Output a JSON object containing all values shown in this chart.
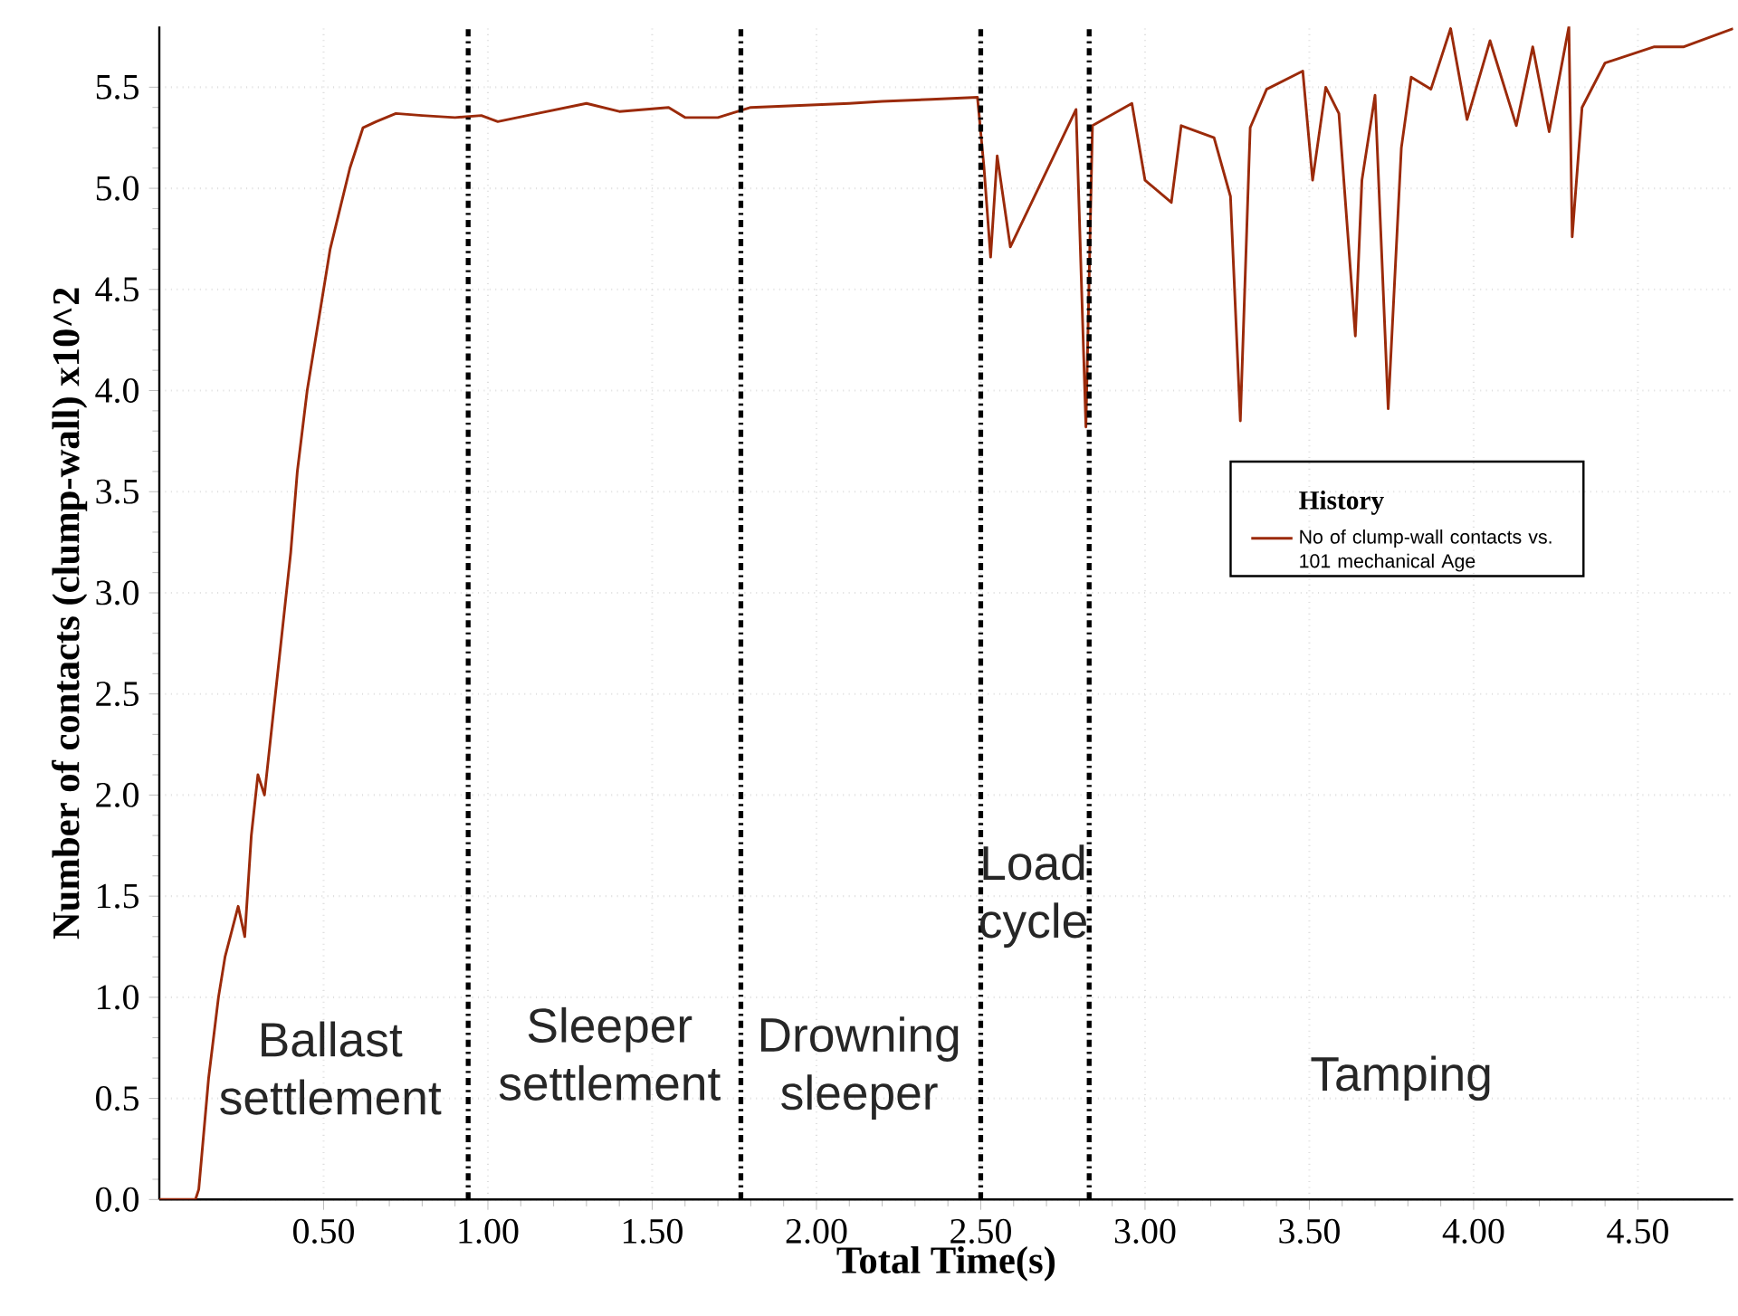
{
  "chart_data": {
    "type": "line",
    "xlabel": "Total Time(s)",
    "ylabel": "Number of contacts (clump-wall) x10^2",
    "legend_title": "History",
    "legend": "right",
    "grid": true,
    "line_style": "solid",
    "marker": "none",
    "xlim": [
      0,
      4.79
    ],
    "ylim": [
      0,
      5.8
    ],
    "xticks": [
      {
        "value": 0.5,
        "label": "0.50"
      },
      {
        "value": 1,
        "label": "1.00"
      },
      {
        "value": 1.5,
        "label": "1.50"
      },
      {
        "value": 2,
        "label": "2.00"
      },
      {
        "value": 2.5,
        "label": "2.50"
      },
      {
        "value": 3,
        "label": "3.00"
      },
      {
        "value": 3.5,
        "label": "3.50"
      },
      {
        "value": 4,
        "label": "4.00"
      },
      {
        "value": 4.5,
        "label": "4.50"
      }
    ],
    "yticks": [
      {
        "value": 0,
        "label": "0.0"
      },
      {
        "value": 0.5,
        "label": "0.5"
      },
      {
        "value": 1,
        "label": "1.0"
      },
      {
        "value": 1.5,
        "label": "1.5"
      },
      {
        "value": 2,
        "label": "2.0"
      },
      {
        "value": 2.5,
        "label": "2.5"
      },
      {
        "value": 3,
        "label": "3.0"
      },
      {
        "value": 3.5,
        "label": "3.5"
      },
      {
        "value": 4,
        "label": "4.0"
      },
      {
        "value": 4.5,
        "label": "4.5"
      },
      {
        "value": 5,
        "label": "5.0"
      },
      {
        "value": 5.5,
        "label": "5.5"
      }
    ],
    "series": [
      {
        "name": "No of clump-wall contacts vs. 101 mechanical Age",
        "color": "#9b2a0a",
        "x": [
          0,
          0.11,
          0.12,
          0.15,
          0.18,
          0.2,
          0.24,
          0.26,
          0.28,
          0.3,
          0.32,
          0.36,
          0.4,
          0.42,
          0.45,
          0.47,
          0.5,
          0.52,
          0.55,
          0.58,
          0.62,
          0.66,
          0.72,
          0.8,
          0.9,
          0.98,
          1.03,
          1.15,
          1.3,
          1.4,
          1.55,
          1.6,
          1.7,
          1.8,
          1.95,
          2.1,
          2.2,
          2.35,
          2.49,
          2.51,
          2.53,
          2.55,
          2.59,
          2.79,
          2.82,
          2.84,
          2.96,
          3.0,
          3.08,
          3.11,
          3.21,
          3.26,
          3.29,
          3.32,
          3.37,
          3.48,
          3.51,
          3.55,
          3.59,
          3.64,
          3.66,
          3.7,
          3.74,
          3.78,
          3.81,
          3.87,
          3.93,
          3.98,
          4.05,
          4.13,
          4.18,
          4.23,
          4.29,
          4.3,
          4.33,
          4.4,
          4.55,
          4.64,
          4.79
        ],
        "values": [
          0,
          0,
          0.05,
          0.6,
          1.0,
          1.2,
          1.45,
          1.3,
          1.8,
          2.1,
          2.0,
          2.6,
          3.2,
          3.6,
          4.0,
          4.2,
          4.5,
          4.7,
          4.9,
          5.1,
          5.3,
          5.33,
          5.37,
          5.36,
          5.35,
          5.36,
          5.33,
          5.37,
          5.42,
          5.38,
          5.4,
          5.35,
          5.35,
          5.4,
          5.41,
          5.42,
          5.43,
          5.44,
          5.45,
          5.1,
          4.66,
          5.16,
          4.71,
          5.39,
          3.82,
          5.31,
          5.42,
          5.04,
          4.93,
          5.31,
          5.25,
          4.96,
          3.85,
          5.3,
          5.49,
          5.58,
          5.04,
          5.5,
          5.37,
          4.27,
          5.04,
          5.46,
          3.91,
          5.2,
          5.55,
          5.49,
          5.79,
          5.34,
          5.73,
          5.31,
          5.7,
          5.28,
          5.8,
          4.76,
          5.4,
          5.62,
          5.7,
          5.7,
          5.79
        ]
      }
    ],
    "ref_lines": [
      {
        "axis": "x",
        "value": 0.94,
        "color": "#000000",
        "line_style": "dashdot"
      },
      {
        "axis": "x",
        "value": 1.77,
        "color": "#000000",
        "line_style": "dashdot"
      },
      {
        "axis": "x",
        "value": 2.5,
        "color": "#000000",
        "line_style": "dashdot"
      },
      {
        "axis": "x",
        "value": 2.83,
        "color": "#000000",
        "line_style": "dashdot"
      }
    ],
    "annotations": [
      "Ballast settlement",
      "Sleeper settlement",
      "Drowning sleeper",
      "Load cycle",
      "Tamping"
    ]
  }
}
